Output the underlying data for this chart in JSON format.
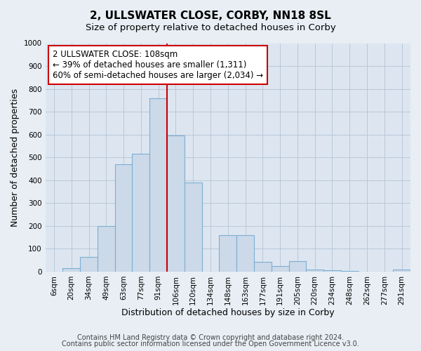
{
  "title": "2, ULLSWATER CLOSE, CORBY, NN18 8SL",
  "subtitle": "Size of property relative to detached houses in Corby",
  "xlabel": "Distribution of detached houses by size in Corby",
  "ylabel": "Number of detached properties",
  "bar_labels": [
    "6sqm",
    "20sqm",
    "34sqm",
    "49sqm",
    "63sqm",
    "77sqm",
    "91sqm",
    "106sqm",
    "120sqm",
    "134sqm",
    "148sqm",
    "163sqm",
    "177sqm",
    "191sqm",
    "205sqm",
    "220sqm",
    "234sqm",
    "248sqm",
    "262sqm",
    "277sqm",
    "291sqm"
  ],
  "bar_values": [
    0,
    15,
    65,
    200,
    470,
    515,
    760,
    595,
    390,
    0,
    160,
    160,
    42,
    25,
    45,
    10,
    5,
    3,
    0,
    0,
    10
  ],
  "bar_color": "#ccd9e8",
  "bar_edge_color": "#7bafd4",
  "vline_color": "#cc0000",
  "annotation_text": "2 ULLSWATER CLOSE: 108sqm\n← 39% of detached houses are smaller (1,311)\n60% of semi-detached houses are larger (2,034) →",
  "annotation_box_facecolor": "#ffffff",
  "annotation_box_edgecolor": "#cc0000",
  "ylim": [
    0,
    1000
  ],
  "yticks": [
    0,
    100,
    200,
    300,
    400,
    500,
    600,
    700,
    800,
    900,
    1000
  ],
  "footer1": "Contains HM Land Registry data © Crown copyright and database right 2024.",
  "footer2": "Contains public sector information licensed under the Open Government Licence v3.0.",
  "bg_color": "#e8eef4",
  "plot_bg_color": "#dde6f0",
  "title_fontsize": 11,
  "subtitle_fontsize": 9.5,
  "axis_label_fontsize": 9,
  "tick_fontsize": 7.5,
  "footer_fontsize": 7,
  "annotation_fontsize": 8.5,
  "grid_color": "#b8c8d8"
}
